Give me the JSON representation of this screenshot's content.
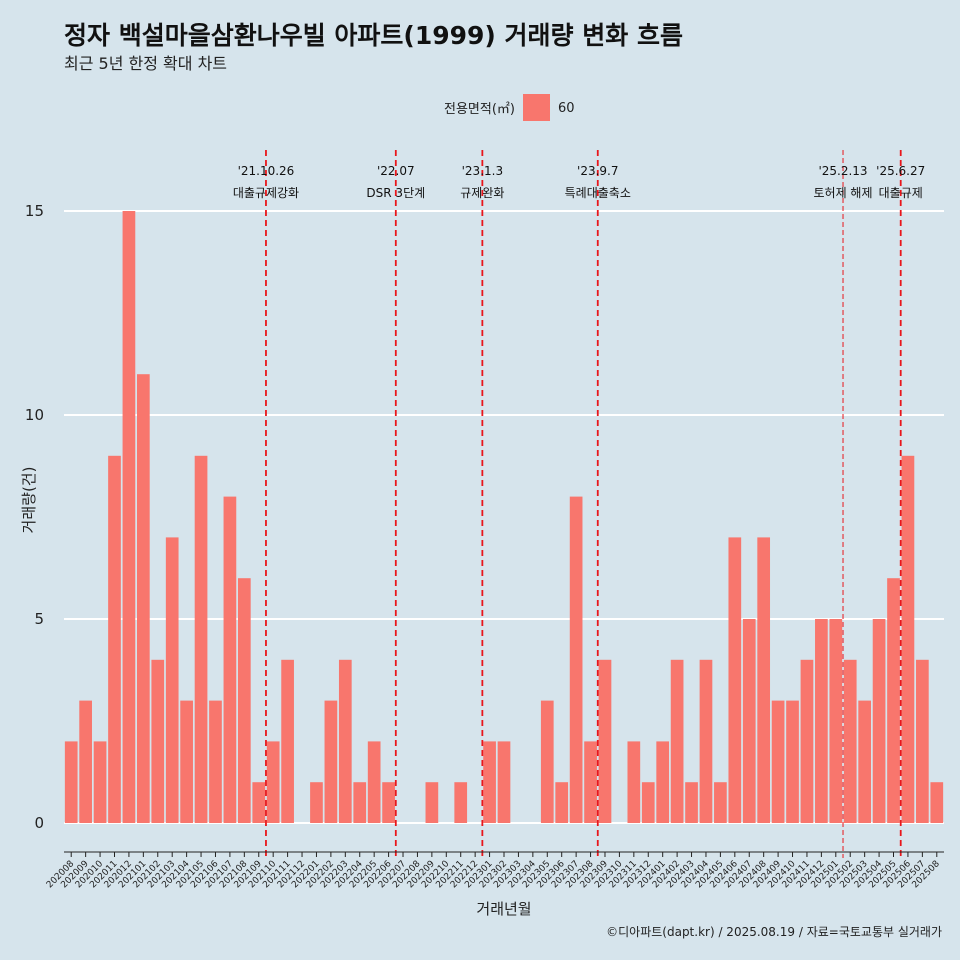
{
  "chart_data": {
    "type": "bar",
    "title": "정자 백설마을삼환나우빌 아파트(1999) 거래량 변화 흐름",
    "subtitle": "최근 5년 한정 확대 차트",
    "xlabel": "거래년월",
    "ylabel": "거래량(건)",
    "ylim": [
      0,
      15
    ],
    "yticks": [
      0,
      5,
      10,
      15
    ],
    "grid": true,
    "legend": {
      "title": "전용면적(㎡)",
      "placement": "top",
      "entries": [
        "60"
      ]
    },
    "categories": [
      "202008",
      "202009",
      "202010",
      "202011",
      "202012",
      "202101",
      "202102",
      "202103",
      "202104",
      "202105",
      "202106",
      "202107",
      "202108",
      "202109",
      "202110",
      "202111",
      "202112",
      "202201",
      "202202",
      "202203",
      "202204",
      "202205",
      "202206",
      "202207",
      "202208",
      "202209",
      "202210",
      "202211",
      "202212",
      "202301",
      "202302",
      "202303",
      "202304",
      "202305",
      "202306",
      "202307",
      "202308",
      "202309",
      "202310",
      "202311",
      "202312",
      "202401",
      "202402",
      "202403",
      "202404",
      "202405",
      "202406",
      "202407",
      "202408",
      "202409",
      "202410",
      "202411",
      "202412",
      "202501",
      "202502",
      "202503",
      "202504",
      "202505",
      "202506",
      "202507",
      "202508"
    ],
    "series": [
      {
        "name": "60",
        "color": "#f8766d",
        "values": [
          2,
          3,
          2,
          9,
          15,
          11,
          4,
          7,
          3,
          9,
          3,
          8,
          6,
          1,
          2,
          4,
          0,
          1,
          3,
          4,
          1,
          2,
          1,
          0,
          0,
          1,
          0,
          1,
          0,
          2,
          2,
          0,
          0,
          3,
          1,
          8,
          2,
          4,
          0,
          2,
          1,
          2,
          4,
          1,
          4,
          1,
          7,
          5,
          7,
          3,
          3,
          4,
          5,
          5,
          4,
          3,
          5,
          6,
          9,
          4,
          1
        ]
      }
    ],
    "events": [
      {
        "date": "'21.10.26",
        "label": "대출규제강화",
        "x": "202110",
        "style": "thick"
      },
      {
        "date": "'22.07",
        "label": "DSR 3단계",
        "x": "202207",
        "style": "thick"
      },
      {
        "date": "'23.1.3",
        "label": "규제완화",
        "x": "202301",
        "style": "thick"
      },
      {
        "date": "'23.9.7",
        "label": "특례대출축소",
        "x": "202309",
        "style": "thick"
      },
      {
        "date": "'25.2.13",
        "label": "토허제 해제",
        "x": "202502",
        "style": "thin"
      },
      {
        "date": "'25.6.27",
        "label": "대출규제",
        "x": "202506",
        "style": "thick"
      }
    ],
    "caption": "©디아파트(dapt.kr) / 2025.08.19 / 자료=국토교통부 실거래가"
  },
  "colors": {
    "background": "#d6e4ec",
    "bar": "#f8766d",
    "event_line": "#e8161b",
    "grid": "#ffffff"
  }
}
